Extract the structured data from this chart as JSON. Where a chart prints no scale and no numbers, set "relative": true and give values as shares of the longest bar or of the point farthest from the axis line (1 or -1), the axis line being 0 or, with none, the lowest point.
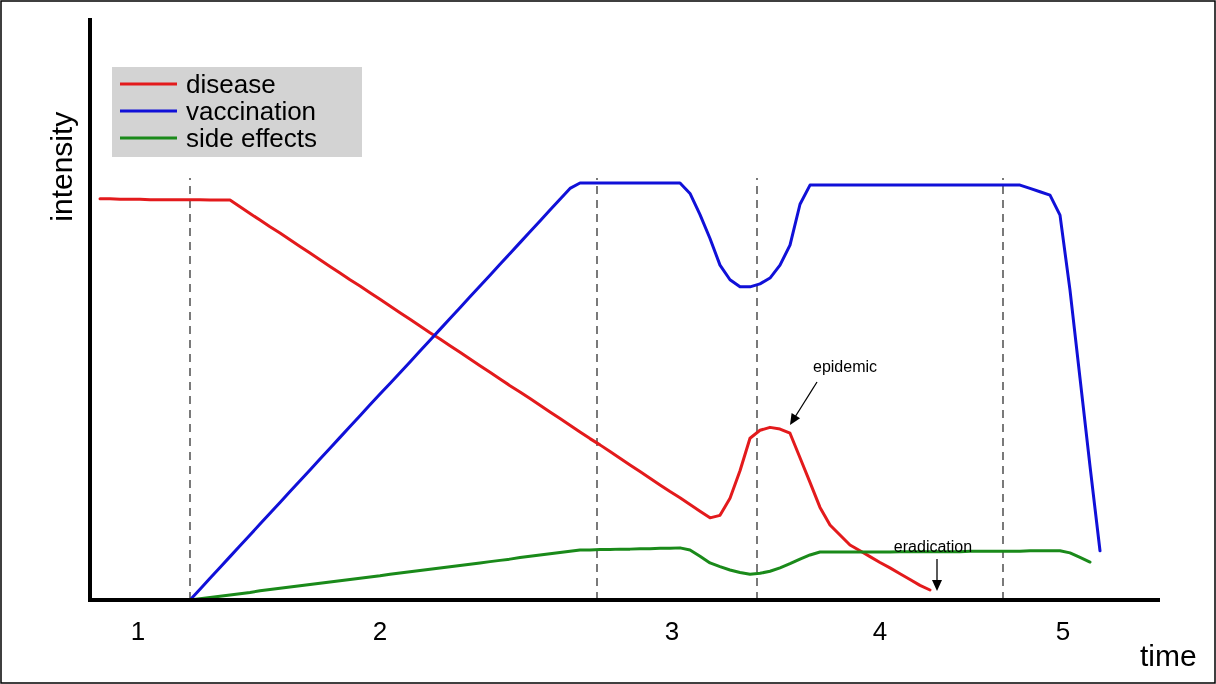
{
  "chart_data": {
    "type": "line",
    "relative": true,
    "xlabel": "time",
    "ylabel": "intensity",
    "categories": [
      null,
      null,
      null,
      null,
      null,
      null,
      null,
      null,
      null,
      null,
      null,
      null,
      null,
      null,
      null,
      null,
      null,
      null,
      null,
      null,
      null,
      null,
      null,
      null,
      null,
      null,
      null,
      null,
      null,
      null,
      null,
      null,
      null,
      null,
      null,
      null,
      null,
      null,
      null,
      null,
      null,
      null,
      null,
      null,
      null,
      null,
      null,
      null,
      null,
      null,
      null,
      null,
      null,
      null,
      null,
      null,
      null,
      null,
      null,
      null,
      null,
      null,
      null,
      null,
      null,
      null,
      null,
      null,
      null,
      null,
      null,
      null,
      null,
      null,
      null,
      null,
      null,
      null,
      null,
      null,
      null,
      null,
      null,
      null,
      null,
      null,
      null,
      null,
      null,
      null,
      null,
      null,
      null,
      null,
      null,
      null,
      null,
      null,
      null,
      null,
      null,
      null,
      null,
      null,
      null,
      null,
      null,
      null
    ],
    "series": [
      {
        "name": "disease",
        "color": "#e31a1c",
        "values": [
          null,
          0.962,
          0.962,
          0.961,
          0.961,
          0.961,
          0.96,
          0.96,
          0.96,
          0.96,
          0.96,
          0.96,
          0.959,
          0.959,
          0.959,
          0.943,
          0.927,
          0.911,
          0.895,
          0.88,
          0.864,
          0.848,
          0.832,
          0.816,
          0.8,
          0.784,
          0.768,
          0.753,
          0.737,
          0.721,
          0.705,
          0.689,
          0.673,
          0.657,
          0.641,
          0.626,
          0.61,
          0.594,
          0.578,
          0.562,
          0.546,
          0.53,
          0.514,
          0.499,
          0.483,
          0.467,
          0.451,
          0.435,
          0.419,
          0.403,
          0.387,
          0.372,
          0.356,
          0.34,
          0.324,
          0.308,
          0.292,
          0.276,
          0.26,
          0.245,
          0.229,
          0.213,
          0.197,
          0.203,
          0.244,
          0.31,
          0.388,
          0.407,
          0.414,
          0.41,
          0.4,
          0.341,
          0.282,
          0.222,
          0.18,
          0.156,
          0.132,
          0.118,
          0.104,
          0.09,
          0.077,
          0.063,
          0.049,
          0.035,
          0.024,
          null,
          null,
          null,
          null,
          null,
          null,
          null,
          null,
          null,
          null,
          null,
          null,
          null,
          null,
          null,
          null,
          null,
          null,
          null,
          null,
          null,
          null,
          null
        ]
      },
      {
        "name": "vaccination",
        "color": "#1010d8",
        "values": [
          null,
          null,
          null,
          null,
          null,
          null,
          null,
          null,
          null,
          null,
          0,
          0.026,
          0.052,
          0.078,
          0.104,
          0.13,
          0.156,
          0.182,
          0.208,
          0.234,
          0.26,
          0.286,
          0.312,
          0.338,
          0.364,
          0.39,
          0.416,
          0.442,
          0.468,
          0.494,
          0.519,
          0.545,
          0.571,
          0.597,
          0.623,
          0.649,
          0.675,
          0.701,
          0.727,
          0.753,
          0.779,
          0.805,
          0.831,
          0.857,
          0.883,
          0.909,
          0.935,
          0.961,
          0.987,
          1,
          1,
          1,
          1,
          1,
          1,
          1,
          1,
          1,
          1,
          1,
          0.975,
          0.924,
          0.867,
          0.803,
          0.768,
          0.751,
          0.751,
          0.758,
          0.772,
          0.803,
          0.851,
          0.949,
          0.995,
          0.995,
          0.995,
          0.995,
          0.995,
          0.995,
          0.995,
          0.995,
          0.995,
          0.995,
          0.995,
          0.995,
          0.995,
          0.995,
          0.995,
          0.995,
          0.995,
          0.995,
          0.995,
          0.995,
          0.995,
          0.995,
          0.987,
          0.979,
          0.971,
          0.923,
          0.743,
          0.532,
          0.321,
          0.118,
          null,
          null,
          null,
          null,
          null,
          null
        ]
      },
      {
        "name": "side effects",
        "color": "#1a8a1a",
        "values": [
          null,
          null,
          null,
          null,
          null,
          null,
          null,
          null,
          null,
          null,
          0,
          0.003,
          0.006,
          0.009,
          0.012,
          0.015,
          0.018,
          0.022,
          0.025,
          0.028,
          0.031,
          0.034,
          0.037,
          0.04,
          0.043,
          0.046,
          0.049,
          0.052,
          0.055,
          0.058,
          0.062,
          0.065,
          0.068,
          0.071,
          0.074,
          0.077,
          0.08,
          0.083,
          0.086,
          0.089,
          0.092,
          0.095,
          0.098,
          0.102,
          0.105,
          0.108,
          0.111,
          0.114,
          0.117,
          0.12,
          0.12,
          0.121,
          0.121,
          0.122,
          0.122,
          0.123,
          0.123,
          0.124,
          0.124,
          0.125,
          0.12,
          0.105,
          0.089,
          0.08,
          0.072,
          0.066,
          0.062,
          0.064,
          0.069,
          0.077,
          0.087,
          0.098,
          0.108,
          0.115,
          0.115,
          0.115,
          0.115,
          0.115,
          0.115,
          0.115,
          0.115,
          0.116,
          0.116,
          0.116,
          0.116,
          0.116,
          0.116,
          0.116,
          0.117,
          0.117,
          0.117,
          0.117,
          0.117,
          0.117,
          0.118,
          0.118,
          0.118,
          0.118,
          0.113,
          0.102,
          0.091,
          null,
          null,
          null,
          null,
          null,
          null,
          null
        ]
      }
    ],
    "annotations": [
      "1",
      "2",
      "3",
      "4",
      "5",
      "epidemic",
      "eradication"
    ],
    "legend": "top left",
    "marker": "none",
    "line_style": "solid"
  }
}
